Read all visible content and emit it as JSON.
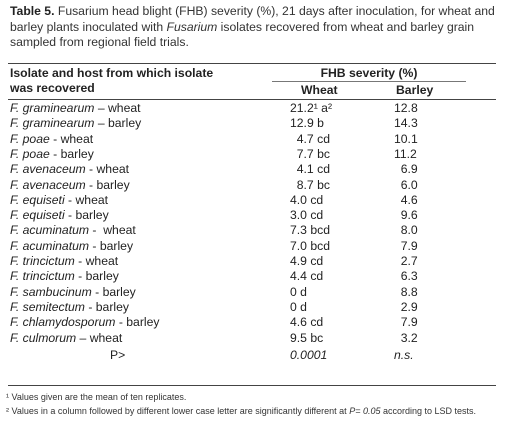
{
  "caption": {
    "label": "Table 5.",
    "parts": [
      " Fusarium head blight (FHB) severity (%), 21 days after inoculation, for wheat and barley plants inoculated with ",
      "Fusarium",
      " isolates recovered from wheat and barley grain sampled from regional field trials."
    ]
  },
  "table": {
    "header": {
      "isolate": [
        "Isolate and host from which isolate",
        "was recovered"
      ],
      "group": "FHB severity (%)",
      "wheat": "Wheat",
      "barley": "Barley"
    },
    "rows": [
      {
        "species": "F. graminearum",
        "host": " – wheat",
        "wheat": "21.2¹ a²",
        "barley": "12.8"
      },
      {
        "species": "F. graminearum",
        "host": " – barley",
        "wheat": "12.9 b",
        "barley": "14.3"
      },
      {
        "species": "F. poae",
        "host": " - wheat",
        "wheat": "  4.7 cd",
        "barley": "10.1"
      },
      {
        "species": "F. poae",
        "host": " - barley",
        "wheat": "  7.7 bc",
        "barley": "11.2"
      },
      {
        "species": "F. avenaceum",
        "host": " - wheat",
        "wheat": "  4.1 cd",
        "barley": "  6.9"
      },
      {
        "species": "F. avenaceum",
        "host": " - barley",
        "wheat": "  8.7 bc",
        "barley": "  6.0"
      },
      {
        "species": "F. equiseti",
        "host": " - wheat",
        "wheat": "4.0 cd",
        "barley": "  4.6"
      },
      {
        "species": "F. equiseti",
        "host": " - barley",
        "wheat": "3.0 cd",
        "barley": "  9.6"
      },
      {
        "species": "F. acuminatum",
        "host": " -  wheat",
        "wheat": "7.3 bcd",
        "barley": "  8.0"
      },
      {
        "species": "F. acuminatum",
        "host": " - barley",
        "wheat": "7.0 bcd",
        "barley": "  7.9"
      },
      {
        "species": "F. trincictum",
        "host": " - wheat",
        "wheat": "4.9 cd",
        "barley": "  2.7"
      },
      {
        "species": "F. trincictum",
        "host": " - barley",
        "wheat": "4.4 cd",
        "barley": "  6.3"
      },
      {
        "species": "F. sambucinum",
        "host": " - barley",
        "wheat": "0 d",
        "barley": "  8.8"
      },
      {
        "species": "F. semitectum",
        "host": " - barley",
        "wheat": "0 d",
        "barley": "  2.9"
      },
      {
        "species": "F. chlamydosporum",
        "host": " - barley",
        "wheat": "4.6 cd",
        "barley": "  7.9"
      },
      {
        "species": "F. culmorum",
        "host": " – wheat",
        "wheat": "9.5 bc",
        "barley": "  3.2"
      }
    ],
    "stat_row": {
      "label": "P>",
      "wheat": "0.0001",
      "barley": "n.s."
    }
  },
  "footnotes": [
    {
      "parts": [
        "¹ Values given are the mean of ten replicates."
      ]
    },
    {
      "parts": [
        "² Values in a column followed by different lower case letter are significantly different at ",
        "P= 0.05",
        " according to LSD tests."
      ]
    }
  ]
}
